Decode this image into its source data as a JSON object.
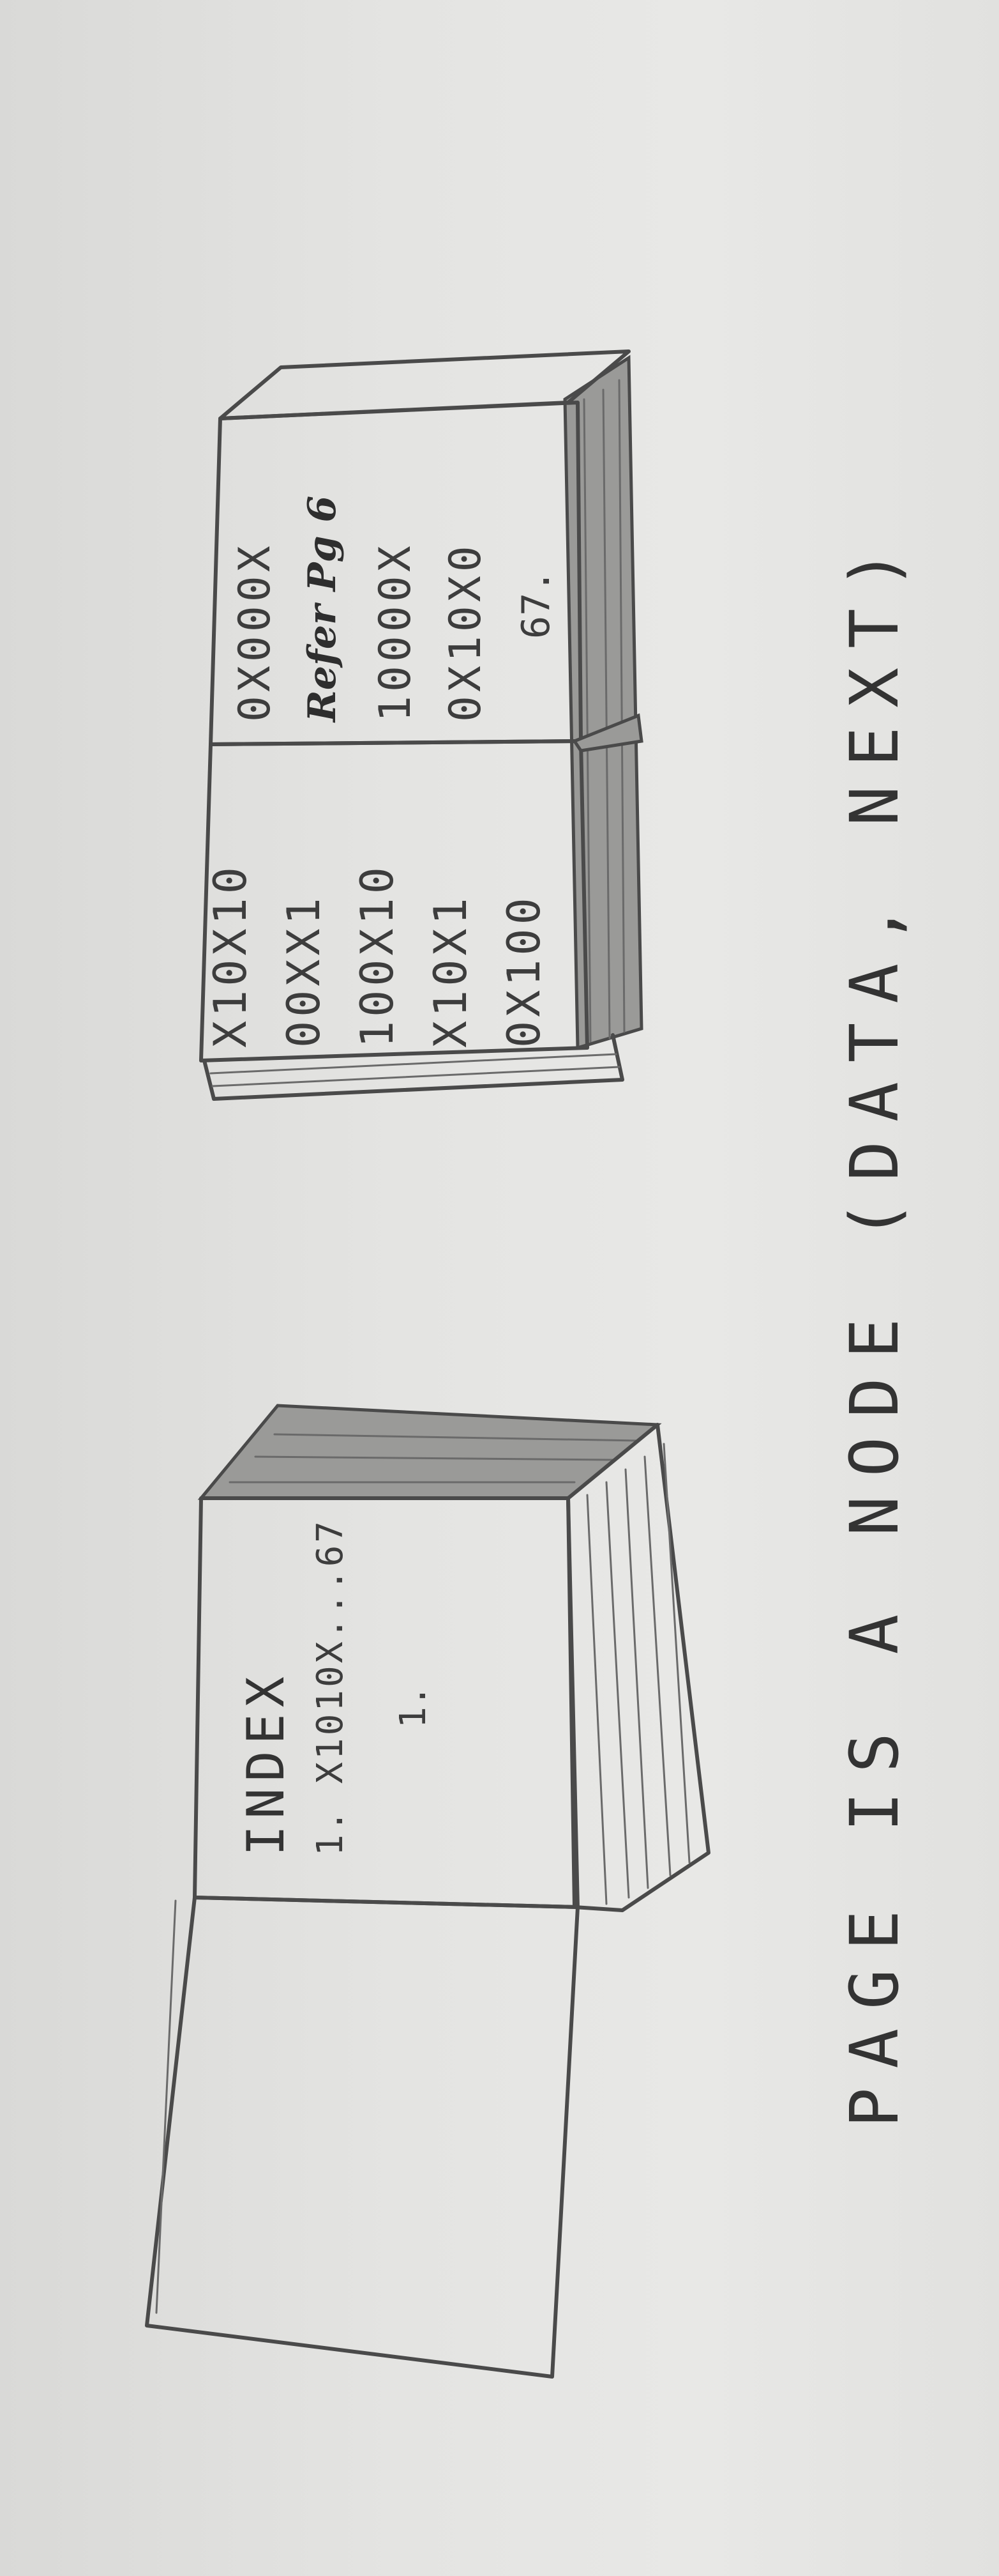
{
  "caption": "PAGE IS A NODE (DATA, NEXT)",
  "index_book": {
    "heading": "INDEX",
    "entry_1": "1. X1010X...67",
    "entry_2": "1."
  },
  "open_book": {
    "left_page_lines": [
      "X10X10",
      "00XX1",
      "100X10",
      "X10X1",
      "0X100"
    ],
    "right_page_lines": [
      "0X000X",
      "Refer Pg 6",
      "10000X",
      "0X10X0",
      "67."
    ]
  }
}
